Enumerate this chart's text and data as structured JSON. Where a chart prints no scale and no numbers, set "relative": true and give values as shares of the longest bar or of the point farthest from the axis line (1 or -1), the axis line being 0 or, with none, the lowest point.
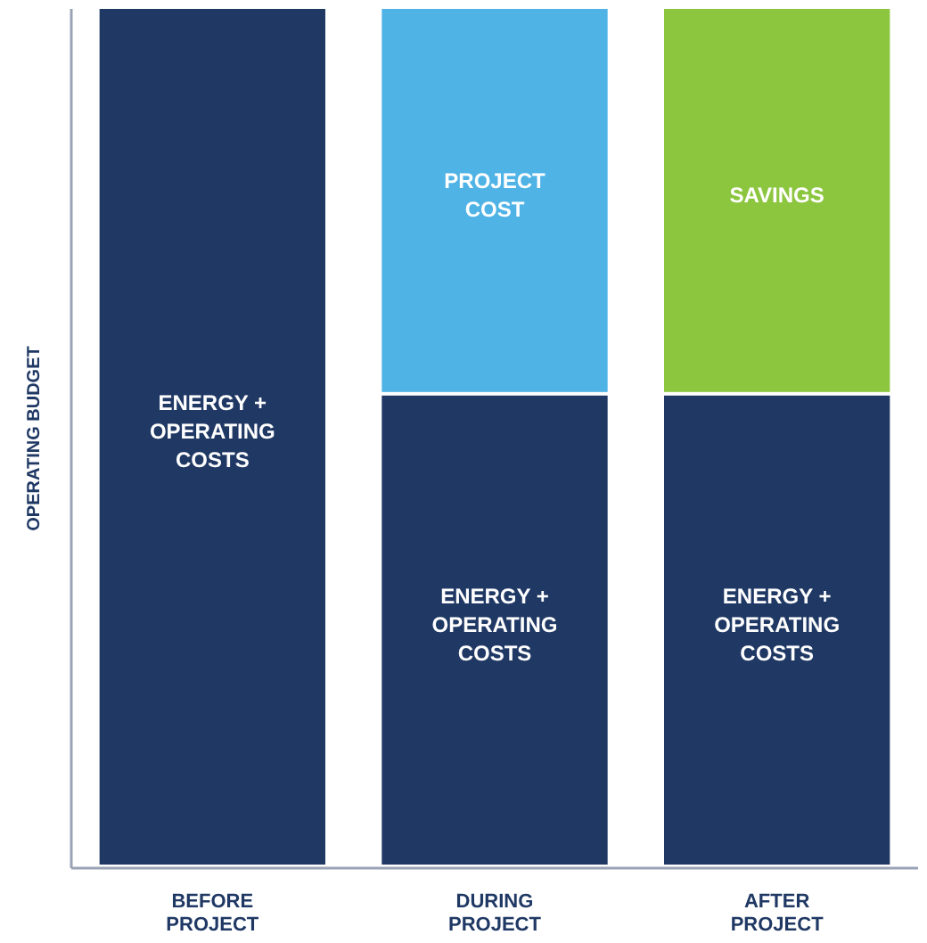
{
  "chart_data": {
    "type": "bar",
    "stacked": true,
    "relative": true,
    "ylabel": "OPERATING BUDGET",
    "categories": [
      "BEFORE PROJECT",
      "DURING PROJECT",
      "AFTER PROJECT"
    ],
    "series": [
      {
        "name": "ENERGY + OPERATING COSTS",
        "color": "#1f3864",
        "values": [
          1,
          0.55,
          0.55
        ]
      },
      {
        "name": "PROJECT COST",
        "color": "#4fb3e6",
        "values": [
          null,
          0.45,
          null
        ]
      },
      {
        "name": "SAVINGS",
        "color": "#8cc63f",
        "values": [
          null,
          null,
          0.45
        ]
      }
    ]
  }
}
